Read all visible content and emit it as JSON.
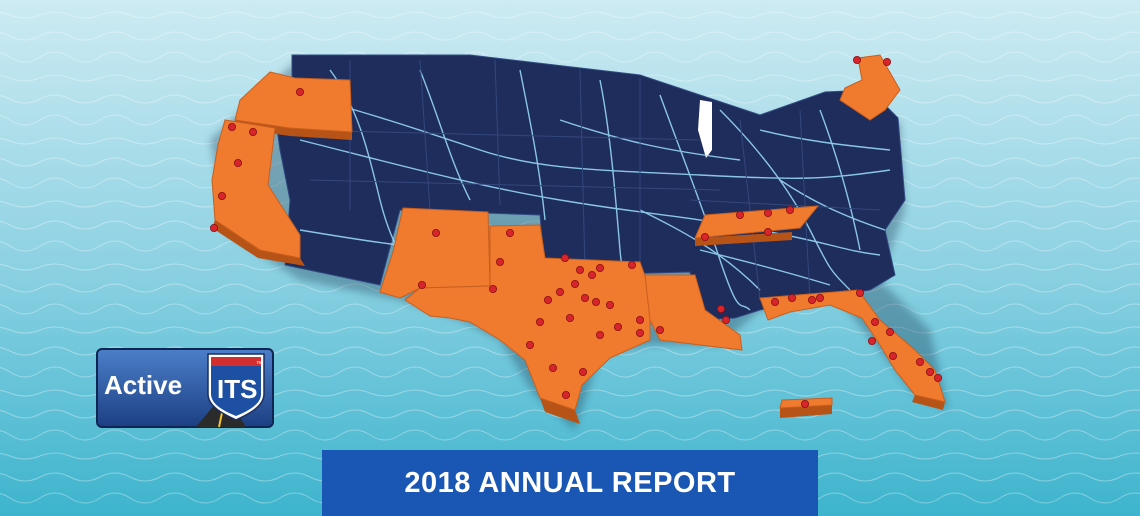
{
  "banner": {
    "title": "2018 ANNUAL REPORT"
  },
  "logo": {
    "text_active": "Active",
    "text_its": "ITS",
    "trademark": "™"
  },
  "map": {
    "highlighted_states": [
      "Oregon",
      "California",
      "New Mexico",
      "Texas",
      "Oklahoma",
      "Louisiana",
      "Tennessee",
      "Florida",
      "Maine",
      "Puerto Rico"
    ],
    "colors": {
      "highlight": "#f07a2e",
      "base": "#1e2d5c",
      "roads": "#9fe0ff",
      "marker": "#d8252b",
      "ocean_top": "#c6e9f1",
      "ocean_bottom": "#3bb5cf"
    }
  }
}
